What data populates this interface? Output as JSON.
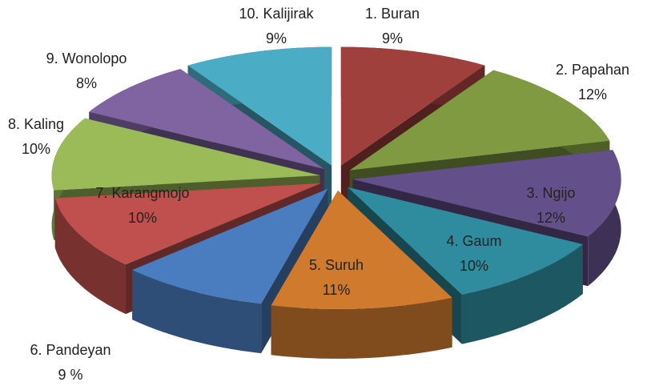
{
  "chart_data": {
    "type": "pie",
    "categories": [
      "1. Buran",
      "2. Papahan",
      "3. Ngijo",
      "4. Gaum",
      "5. Suruh",
      "6. Pandeyan",
      "7. Karangmojo",
      "8. Kaling",
      "9. Wonolopo",
      "10. Kalijirak"
    ],
    "values": [
      9,
      12,
      12,
      10,
      11,
      9,
      10,
      10,
      8,
      9
    ],
    "value_labels": [
      "9%",
      "12%",
      "12%",
      "10%",
      "11%",
      "9 %",
      "10%",
      "10%",
      "8%",
      "9%"
    ],
    "colors": [
      "#a0403c",
      "#7f9a41",
      "#634f8a",
      "#2f8c9e",
      "#d07a2e",
      "#4a7dc0",
      "#c0504d",
      "#9bbb59",
      "#8064a2",
      "#4bacc6"
    ]
  }
}
